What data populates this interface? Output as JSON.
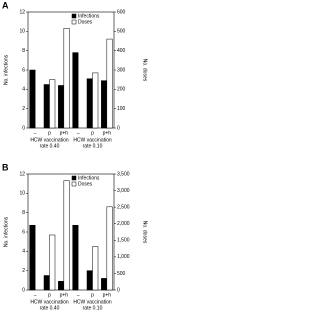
{
  "chart_data": [
    {
      "type": "bar",
      "panel": "A",
      "categories": [
        "–",
        "p",
        "p+h",
        "–",
        "p",
        "p+h"
      ],
      "groups": [
        [
          "HCW vaccination",
          "rate 0.40"
        ],
        [
          "HCW vaccination",
          "rate 0.10"
        ]
      ],
      "series": [
        {
          "name": "Infections",
          "color": "#000000",
          "values": [
            6.0,
            4.5,
            4.4,
            7.8,
            5.1,
            4.9
          ]
        },
        {
          "name": "Doses",
          "color": "#ffffff",
          "axis": "y2",
          "values": [
            null,
            250,
            515,
            null,
            285,
            460
          ]
        }
      ],
      "ylabel": "No. infections",
      "y2label": "No. doses",
      "ylim": [
        0,
        12
      ],
      "yticks": [
        0,
        2,
        4,
        6,
        8,
        10,
        12
      ],
      "y2lim": [
        0,
        600
      ],
      "y2ticks": [
        0,
        100,
        200,
        300,
        400,
        500,
        600
      ]
    },
    {
      "type": "bar",
      "panel": "B",
      "categories": [
        "–",
        "p",
        "p+h",
        "–",
        "p",
        "p+h"
      ],
      "groups": [
        [
          "HCW vaccination",
          "rate 0.40"
        ],
        [
          "HCW vaccination",
          "rate 0.10"
        ]
      ],
      "series": [
        {
          "name": "Infections",
          "color": "#000000",
          "values": [
            6.7,
            1.5,
            0.9,
            6.7,
            2.0,
            1.2
          ]
        },
        {
          "name": "Doses",
          "color": "#ffffff",
          "axis": "y2",
          "values": [
            null,
            1660,
            3300,
            null,
            1310,
            2510
          ]
        }
      ],
      "ylabel": "No. infections",
      "y2label": "No. doses",
      "ylim": [
        0,
        12
      ],
      "yticks": [
        0,
        2,
        4,
        6,
        8,
        10,
        12
      ],
      "y2lim": [
        0,
        3500
      ],
      "y2ticks": [
        0,
        500,
        {
          "value": 1000,
          "label": "1,000"
        },
        {
          "value": 1500,
          "label": "1,500"
        },
        {
          "value": 2000,
          "label": "2,000"
        },
        {
          "value": 2500,
          "label": "2,500"
        },
        {
          "value": 3000,
          "label": "3,000"
        },
        {
          "value": 3500,
          "label": "3,500"
        }
      ]
    }
  ]
}
